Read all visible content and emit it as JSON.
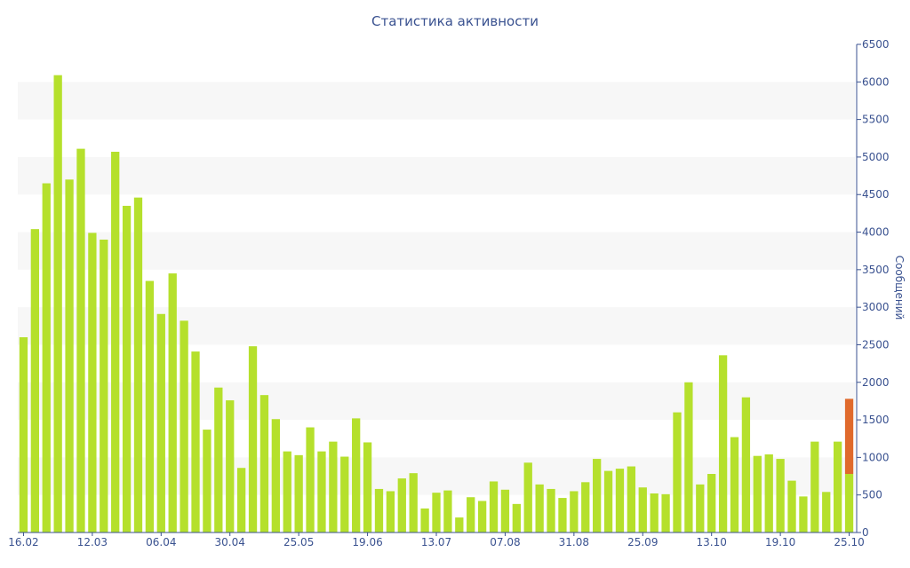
{
  "chart_data": {
    "type": "bar",
    "title": "Статистика активности",
    "ylabel": "Сообщений",
    "xlabel": "",
    "ylim": [
      0,
      6500
    ],
    "y_ticks": [
      0,
      500,
      1000,
      1500,
      2000,
      2500,
      3000,
      3500,
      4000,
      4500,
      5000,
      5500,
      6000,
      6500
    ],
    "x_tick_labels": [
      {
        "label": "16.02",
        "index": 0
      },
      {
        "label": "12.03",
        "index": 6
      },
      {
        "label": "06.04",
        "index": 12
      },
      {
        "label": "30.04",
        "index": 18
      },
      {
        "label": "25.05",
        "index": 24
      },
      {
        "label": "19.06",
        "index": 30
      },
      {
        "label": "13.07",
        "index": 36
      },
      {
        "label": "07.08",
        "index": 42
      },
      {
        "label": "31.08",
        "index": 48
      },
      {
        "label": "25.09",
        "index": 54
      },
      {
        "label": "13.10",
        "index": 60
      },
      {
        "label": "19.10",
        "index": 66
      },
      {
        "label": "25.10",
        "index": 72
      }
    ],
    "grid": "alternating horizontal bands",
    "colors": {
      "bar": "#b5e02c",
      "highlight": "#e06a2c",
      "axis": "#3a5290",
      "band": "#f7f7f7"
    },
    "values": [
      2600,
      4040,
      4650,
      6090,
      4700,
      5110,
      3990,
      3900,
      5070,
      4350,
      4460,
      3350,
      2910,
      3450,
      2820,
      2410,
      1370,
      1930,
      1760,
      860,
      2480,
      1830,
      1510,
      1080,
      1030,
      1400,
      1080,
      1210,
      1010,
      1520,
      1200,
      580,
      550,
      720,
      790,
      320,
      530,
      560,
      200,
      470,
      420,
      680,
      570,
      380,
      930,
      640,
      580,
      460,
      550,
      670,
      980,
      820,
      850,
      880,
      600,
      520,
      510,
      1600,
      2000,
      640,
      780,
      2360,
      1270,
      1800,
      1020,
      1040,
      980,
      690,
      480,
      1210,
      540,
      1210,
      780
    ],
    "highlight_last": {
      "base": 780,
      "extra": 1000
    }
  }
}
